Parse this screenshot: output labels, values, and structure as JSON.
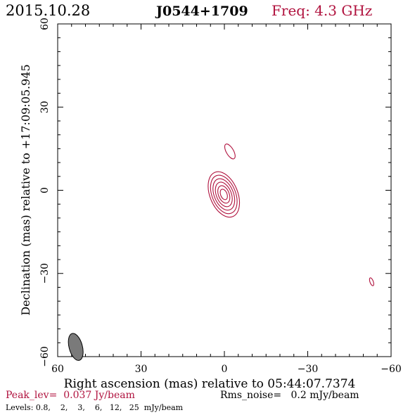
{
  "header": {
    "date": "2015.10.28",
    "source": "J0544+1709",
    "freq": "Freq: 4.3 GHz"
  },
  "footer": {
    "peak": "Peak_lev=  0.037 Jy/beam",
    "rms": "Rms_noise=   0.2 mJy/beam",
    "levels": "Levels: 0.8,    2,    3,    6,   12,   25  mJy/beam"
  },
  "colors": {
    "contour": "#b0123e",
    "axis": "#000000",
    "beam": "#7a7a7a"
  },
  "chart_data": {
    "type": "contour",
    "xlabel": "Right ascension (mas) relative to 05:44:07.7374",
    "ylabel": "Declination (mas) relative to +17:09:05.945",
    "xlim": [
      60,
      -60
    ],
    "ylim": [
      -60,
      60
    ],
    "x_ticks": [
      60,
      30,
      0,
      -30,
      -60
    ],
    "y_ticks": [
      -60,
      -30,
      0,
      30,
      60
    ],
    "x_tick_labels": [
      "60",
      "30",
      "0",
      "−30",
      "−60"
    ],
    "y_tick_labels": [
      "−60",
      "−30",
      "0",
      "30",
      "60"
    ],
    "levels_mJy": [
      0.8,
      2,
      3,
      6,
      12,
      25
    ],
    "peak_Jy_per_beam": 0.037,
    "rms_mJy_per_beam": 0.2,
    "components": [
      {
        "x": 0.2,
        "y": -1.5,
        "a": 8.6,
        "b": 5.0,
        "pa_deg": 22,
        "levels_drawn": 6
      },
      {
        "x": -2.0,
        "y": 14.0,
        "a": 3.0,
        "b": 1.3,
        "pa_deg": 30,
        "levels_drawn": 1
      },
      {
        "x": -53.0,
        "y": -33.0,
        "a": 1.5,
        "b": 0.6,
        "pa_deg": 20,
        "levels_drawn": 1
      }
    ],
    "beam": {
      "x": 53.5,
      "y": -56.5,
      "major": 5.0,
      "minor": 2.4,
      "pa_deg": 15
    }
  }
}
